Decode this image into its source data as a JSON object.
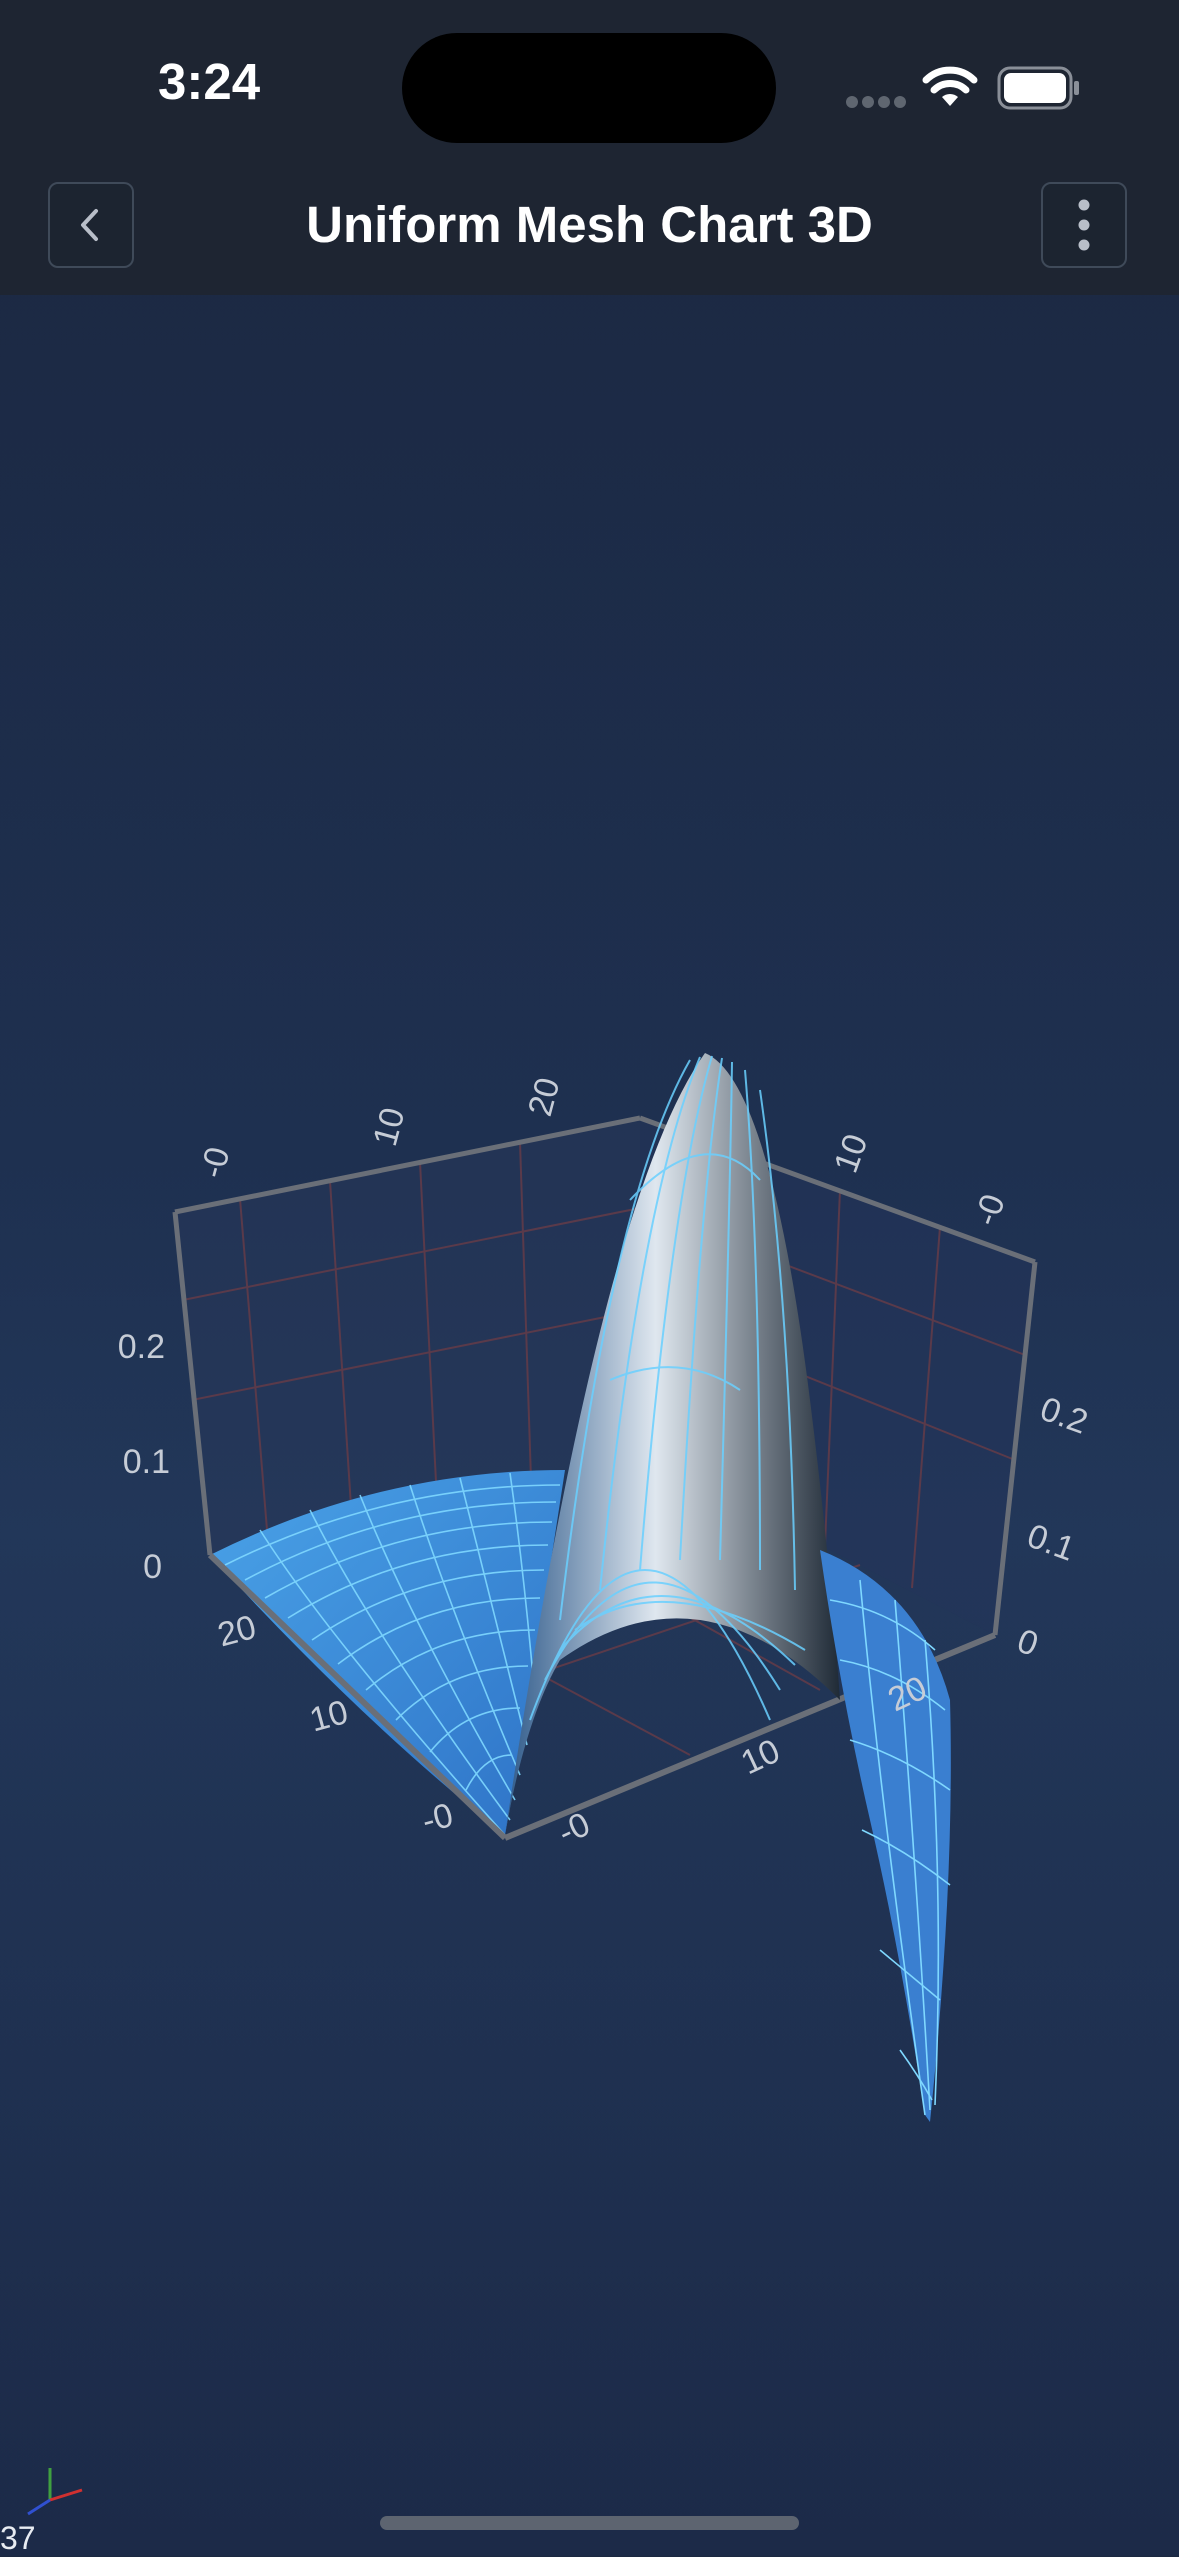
{
  "status_bar": {
    "time": "3:24"
  },
  "header": {
    "title": "Uniform Mesh Chart 3D",
    "back_icon": "chevron-left-icon",
    "menu_icon": "more-vertical-icon"
  },
  "chart_data": {
    "type": "surface-3d",
    "title": "",
    "x_ticks": [
      "-0",
      "10",
      "20"
    ],
    "z_ticks": [
      "-0",
      "10",
      "20"
    ],
    "y_ticks": [
      "0",
      "0.1",
      "0.2"
    ],
    "back_x_ticks": [
      "-0",
      "10",
      "20"
    ],
    "back_z_ticks": [
      "10",
      "-0"
    ],
    "right_y_ticks": [
      "0",
      "0.1",
      "0.2"
    ],
    "mesh_color": "#5ec8ff",
    "surface_color": "#2a6fbf",
    "grid_color": "#5a3a4a"
  },
  "footer": {
    "fps": "37"
  }
}
